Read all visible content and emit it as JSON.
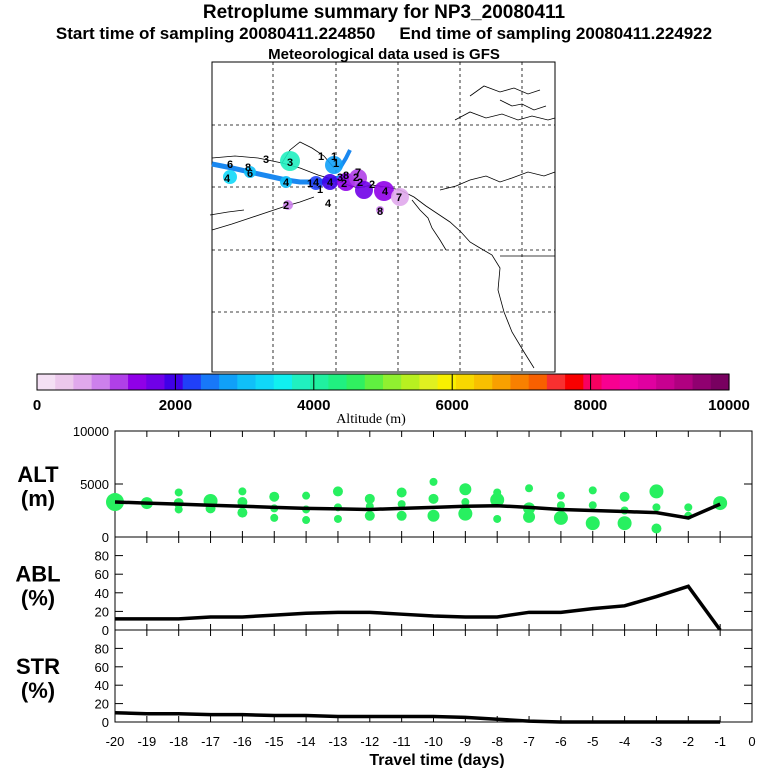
{
  "header": {
    "title": "Retroplume summary for NP3_20080411",
    "start_label": "Start time of sampling 20080411.224850",
    "end_label": "End time of sampling 20080411.224922",
    "met_label": "Meteorological data used is GFS"
  },
  "colorbar": {
    "label": "Altitude (m)",
    "tick_labels": [
      "0",
      "2000",
      "4000",
      "6000",
      "8000",
      "10000"
    ],
    "ticks": [
      0,
      2000,
      4000,
      6000,
      8000,
      10000
    ],
    "colors": [
      "#f4e0f4",
      "#ecc8ec",
      "#e0a8ec",
      "#cc80ec",
      "#b040e8",
      "#9000e8",
      "#7000e8",
      "#4000e8",
      "#2040f8",
      "#1878f8",
      "#10a0f8",
      "#10c0f8",
      "#10d8f8",
      "#10f0f0",
      "#20f0c0",
      "#20f0a0",
      "#20f080",
      "#30f060",
      "#60f040",
      "#90f030",
      "#b8f020",
      "#e0f020",
      "#f8f000",
      "#f8d800",
      "#f8c000",
      "#f8a000",
      "#f88000",
      "#f86000",
      "#f83030",
      "#f80000",
      "#f80060",
      "#f80090",
      "#f000a8",
      "#e000a0",
      "#c80090",
      "#b00080",
      "#900070",
      "#780060"
    ]
  },
  "map": {
    "labels": [
      "1",
      "3",
      "6",
      "4",
      "6",
      "4",
      "4",
      "1",
      "4",
      "2",
      "2",
      "8",
      "7",
      "2",
      "3",
      "1",
      "4",
      "2",
      "1",
      "3",
      "2",
      "8",
      "1",
      "4",
      "7",
      "8"
    ]
  },
  "chart_data": [
    {
      "type": "line",
      "name": "ALT",
      "ylabel_top": "ALT",
      "ylabel_bottom": "(m)",
      "ylim": [
        0,
        10000
      ],
      "ytick_labels": [
        "10000",
        "5000",
        "0"
      ],
      "yticks": [
        10000,
        5000,
        0
      ],
      "x": [
        -20,
        -19,
        -18,
        -17,
        -16,
        -15,
        -14,
        -13,
        -12,
        -11,
        -10,
        -9,
        -8,
        -7,
        -6,
        -5,
        -4,
        -3,
        -2,
        -1
      ],
      "values": [
        3300,
        3200,
        3100,
        3000,
        2900,
        2800,
        2700,
        2650,
        2600,
        2700,
        2800,
        2900,
        2950,
        2800,
        2600,
        2500,
        2400,
        2300,
        1800,
        3100
      ],
      "points": [
        {
          "x": -20,
          "y": 3300,
          "s": 9
        },
        {
          "x": -19,
          "y": 3200,
          "s": 6
        },
        {
          "x": -18,
          "y": 4200,
          "s": 4
        },
        {
          "x": -18,
          "y": 3200,
          "s": 5
        },
        {
          "x": -18,
          "y": 2600,
          "s": 4
        },
        {
          "x": -17,
          "y": 3400,
          "s": 7
        },
        {
          "x": -17,
          "y": 2700,
          "s": 5
        },
        {
          "x": -16,
          "y": 4300,
          "s": 4
        },
        {
          "x": -16,
          "y": 3300,
          "s": 5
        },
        {
          "x": -16,
          "y": 2300,
          "s": 5
        },
        {
          "x": -15,
          "y": 3800,
          "s": 5
        },
        {
          "x": -15,
          "y": 2700,
          "s": 4
        },
        {
          "x": -15,
          "y": 1800,
          "s": 4
        },
        {
          "x": -14,
          "y": 3900,
          "s": 4
        },
        {
          "x": -14,
          "y": 2600,
          "s": 4
        },
        {
          "x": -14,
          "y": 1600,
          "s": 4
        },
        {
          "x": -13,
          "y": 4300,
          "s": 5
        },
        {
          "x": -13,
          "y": 2800,
          "s": 4
        },
        {
          "x": -13,
          "y": 1700,
          "s": 4
        },
        {
          "x": -12,
          "y": 3600,
          "s": 5
        },
        {
          "x": -12,
          "y": 2900,
          "s": 4
        },
        {
          "x": -12,
          "y": 2000,
          "s": 5
        },
        {
          "x": -11,
          "y": 4200,
          "s": 5
        },
        {
          "x": -11,
          "y": 3100,
          "s": 4
        },
        {
          "x": -11,
          "y": 2000,
          "s": 5
        },
        {
          "x": -10,
          "y": 5200,
          "s": 4
        },
        {
          "x": -10,
          "y": 3600,
          "s": 5
        },
        {
          "x": -10,
          "y": 2000,
          "s": 6
        },
        {
          "x": -9,
          "y": 4500,
          "s": 6
        },
        {
          "x": -9,
          "y": 3300,
          "s": 4
        },
        {
          "x": -9,
          "y": 2200,
          "s": 7
        },
        {
          "x": -8,
          "y": 4200,
          "s": 4
        },
        {
          "x": -8,
          "y": 3500,
          "s": 7
        },
        {
          "x": -8,
          "y": 1700,
          "s": 4
        },
        {
          "x": -7,
          "y": 4600,
          "s": 4
        },
        {
          "x": -7,
          "y": 2700,
          "s": 6
        },
        {
          "x": -7,
          "y": 1900,
          "s": 6
        },
        {
          "x": -6,
          "y": 3900,
          "s": 4
        },
        {
          "x": -6,
          "y": 3000,
          "s": 4
        },
        {
          "x": -6,
          "y": 1800,
          "s": 7
        },
        {
          "x": -5,
          "y": 4400,
          "s": 4
        },
        {
          "x": -5,
          "y": 3000,
          "s": 4
        },
        {
          "x": -5,
          "y": 1300,
          "s": 7
        },
        {
          "x": -4,
          "y": 3800,
          "s": 5
        },
        {
          "x": -4,
          "y": 2500,
          "s": 4
        },
        {
          "x": -4,
          "y": 1300,
          "s": 7
        },
        {
          "x": -3,
          "y": 4300,
          "s": 7
        },
        {
          "x": -3,
          "y": 2800,
          "s": 4
        },
        {
          "x": -3,
          "y": 800,
          "s": 5
        },
        {
          "x": -2,
          "y": 2800,
          "s": 4
        },
        {
          "x": -2,
          "y": 2000,
          "s": 4
        },
        {
          "x": -1,
          "y": 3200,
          "s": 7
        }
      ]
    },
    {
      "type": "line",
      "name": "ABL",
      "ylabel_top": "ABL",
      "ylabel_bottom": "(%)",
      "ylim": [
        0,
        100
      ],
      "ytick_labels": [
        "80",
        "60",
        "40",
        "20",
        "0"
      ],
      "yticks": [
        80,
        60,
        40,
        20,
        0
      ],
      "x": [
        -20,
        -19,
        -18,
        -17,
        -16,
        -15,
        -14,
        -13,
        -12,
        -11,
        -10,
        -9,
        -8,
        -7,
        -6,
        -5,
        -4,
        -3,
        -2,
        -1
      ],
      "values": [
        12,
        12,
        12,
        14,
        14,
        16,
        18,
        19,
        19,
        17,
        15,
        14,
        14,
        19,
        19,
        23,
        26,
        36,
        47,
        0
      ]
    },
    {
      "type": "line",
      "name": "STR",
      "ylabel_top": "STR",
      "ylabel_bottom": "(%)",
      "ylim": [
        0,
        100
      ],
      "ytick_labels": [
        "80",
        "60",
        "40",
        "20",
        "0"
      ],
      "yticks": [
        80,
        60,
        40,
        20,
        0
      ],
      "x": [
        -20,
        -19,
        -18,
        -17,
        -16,
        -15,
        -14,
        -13,
        -12,
        -11,
        -10,
        -9,
        -8,
        -7,
        -6,
        -5,
        -4,
        -3,
        -2,
        -1
      ],
      "values": [
        10,
        9,
        9,
        8,
        8,
        7,
        7,
        6,
        6,
        6,
        6,
        5,
        3,
        1,
        0,
        0,
        0,
        0,
        0,
        0
      ],
      "xlabel": "Travel time (days)",
      "xtick_labels": [
        "-20",
        "-19",
        "-18",
        "-17",
        "-16",
        "-15",
        "-14",
        "-13",
        "-12",
        "-11",
        "-10",
        "-9",
        "-8",
        "-7",
        "-6",
        "-5",
        "-4",
        "-3",
        "-2",
        "-1",
        "0"
      ],
      "xticks": [
        -20,
        -19,
        -18,
        -17,
        -16,
        -15,
        -14,
        -13,
        -12,
        -11,
        -10,
        -9,
        -8,
        -7,
        -6,
        -5,
        -4,
        -3,
        -2,
        -1,
        0
      ],
      "xlim": [
        -20,
        0
      ]
    }
  ]
}
